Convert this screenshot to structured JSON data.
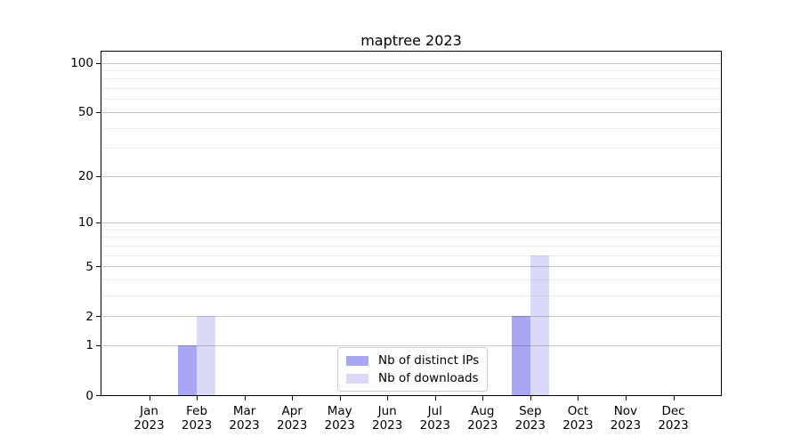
{
  "title": "maptree 2023",
  "chart_data": {
    "type": "bar",
    "title": "maptree 2023",
    "categories": [
      "Jan",
      "Feb",
      "Mar",
      "Apr",
      "May",
      "Jun",
      "Jul",
      "Aug",
      "Sep",
      "Oct",
      "Nov",
      "Dec"
    ],
    "year_label": "2023",
    "series": [
      {
        "name": "Nb of distinct IPs",
        "color": "#a7a7f3",
        "values": [
          0,
          1,
          0,
          0,
          0,
          0,
          0,
          0,
          2,
          0,
          0,
          0
        ]
      },
      {
        "name": "Nb of downloads",
        "color": "#dadaf8",
        "values": [
          0,
          2,
          0,
          0,
          0,
          0,
          0,
          0,
          6,
          0,
          0,
          0
        ]
      }
    ],
    "y_scale": "log1p",
    "ylim": [
      0,
      119
    ],
    "y_ticks": [
      0,
      1,
      2,
      5,
      10,
      20,
      50,
      100
    ],
    "y_minor_gridlines": [
      3,
      4,
      6,
      7,
      8,
      9,
      30,
      40,
      60,
      70,
      80,
      90
    ],
    "grid": "on",
    "legend_position": "inside-bottom-center",
    "xlabel": "",
    "ylabel": ""
  },
  "legend": {
    "item1": "Nb of distinct IPs",
    "item2": "Nb of downloads"
  },
  "colors": {
    "distinct_ips_bar": "#a7a7f3",
    "downloads_bar": "#dadaf8",
    "axis": "#000000",
    "legend_border": "#cccccc"
  }
}
